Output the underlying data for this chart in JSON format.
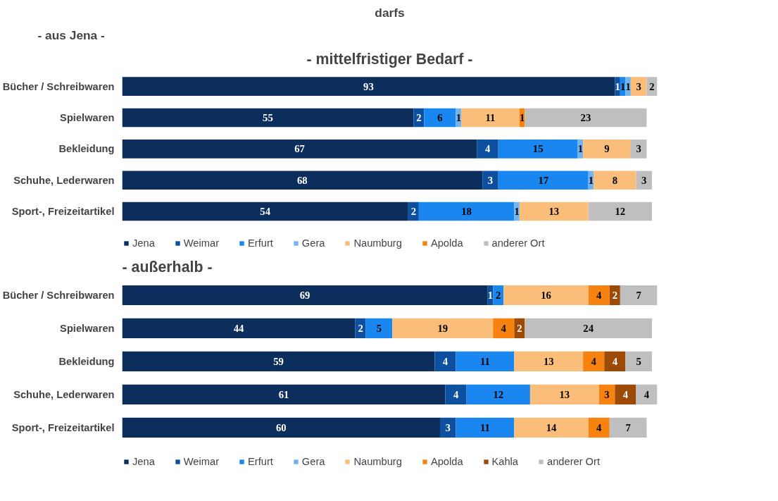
{
  "chart_data": [
    {
      "type": "bar",
      "orientation": "horizontal",
      "stacked": true,
      "data_labels": true,
      "legend": "bottom",
      "grid": false,
      "title": "- mittelfristiger Bedarf -",
      "subtitle": "- aus Jena -",
      "annotations": [
        "darfs"
      ],
      "categories": [
        "Bücher / Schreibwaren",
        "Spielwaren",
        "Bekleidung",
        "Schuhe, Lederwaren",
        "Sport-, Freizeitartikel"
      ],
      "series": [
        {
          "name": "Jena",
          "color": "#0b2e5c",
          "values": [
            93,
            55,
            67,
            68,
            54
          ]
        },
        {
          "name": "Weimar",
          "color": "#0d50a0",
          "values": [
            1,
            2,
            4,
            3,
            2
          ]
        },
        {
          "name": "Erfurt",
          "color": "#1a86f0",
          "values": [
            1,
            6,
            15,
            17,
            18
          ]
        },
        {
          "name": "Gera",
          "color": "#72b4f0",
          "values": [
            1,
            1,
            1,
            1,
            1
          ]
        },
        {
          "name": "Naumburg",
          "color": "#fbbe7a",
          "values": [
            3,
            11,
            9,
            8,
            13
          ]
        },
        {
          "name": "Apolda",
          "color": "#f7820f",
          "values": [
            null,
            1,
            null,
            null,
            null
          ]
        },
        {
          "name": "anderer Ort",
          "color": "#bfbfbf",
          "values": [
            2,
            23,
            3,
            3,
            12
          ]
        }
      ]
    },
    {
      "type": "bar",
      "orientation": "horizontal",
      "stacked": true,
      "data_labels": true,
      "legend": "bottom",
      "grid": false,
      "title": "-   außerhalb -",
      "categories": [
        "Bücher / Schreibwaren",
        "Spielwaren",
        "Bekleidung",
        "Schuhe, Lederwaren",
        "Sport-, Freizeitartikel"
      ],
      "series": [
        {
          "name": "Jena",
          "color": "#0b2e5c",
          "values": [
            69,
            44,
            59,
            61,
            60
          ]
        },
        {
          "name": "Weimar",
          "color": "#0d50a0",
          "values": [
            1,
            2,
            4,
            4,
            3
          ]
        },
        {
          "name": "Erfurt",
          "color": "#1a86f0",
          "values": [
            2,
            5,
            11,
            12,
            11
          ]
        },
        {
          "name": "Gera",
          "color": "#72b4f0",
          "values": [
            null,
            null,
            null,
            null,
            null
          ]
        },
        {
          "name": "Naumburg",
          "color": "#fbbe7a",
          "values": [
            16,
            19,
            13,
            13,
            14
          ]
        },
        {
          "name": "Apolda",
          "color": "#f7820f",
          "values": [
            4,
            4,
            4,
            3,
            4
          ]
        },
        {
          "name": "Kahla",
          "color": "#9c4a06",
          "values": [
            2,
            2,
            4,
            4,
            null
          ]
        },
        {
          "name": "anderer Ort",
          "color": "#bfbfbf",
          "values": [
            7,
            24,
            5,
            4,
            7
          ]
        }
      ]
    }
  ]
}
